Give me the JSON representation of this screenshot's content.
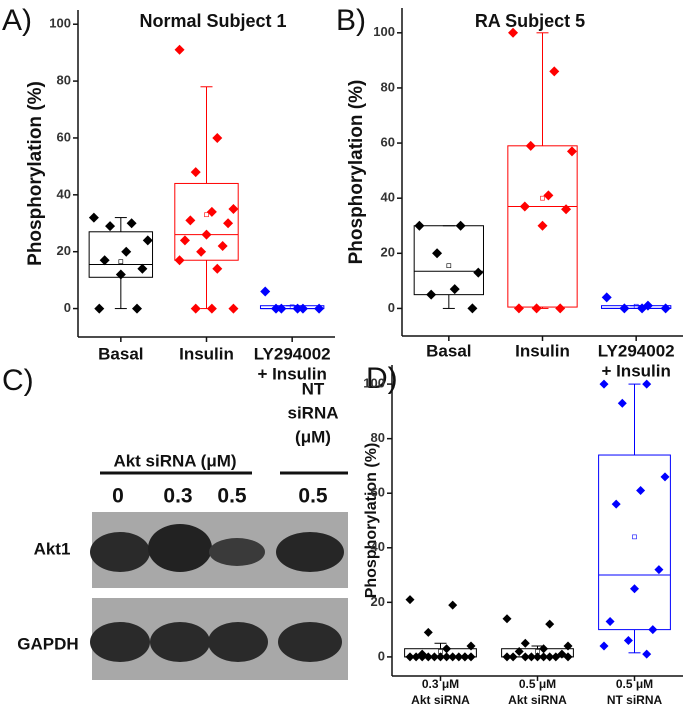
{
  "chart_data": [
    {
      "type": "box",
      "panel_label": "A)",
      "title": "Normal Subject 1",
      "y_label": "Phosphorylation (%)",
      "categories": [
        [
          "Basal"
        ],
        [
          "Insulin"
        ],
        [
          "LY294002",
          "+ Insulin"
        ]
      ],
      "colors": [
        "#000000",
        "#ff0000",
        "#0000ff"
      ],
      "points": [
        [
          32,
          30,
          29,
          24,
          20,
          17,
          14,
          12,
          0,
          0
        ],
        [
          91,
          60,
          48,
          35,
          34,
          31,
          30,
          26,
          24,
          22,
          20,
          17,
          14,
          0,
          0,
          0
        ],
        [
          6,
          0,
          0,
          0,
          0,
          0
        ]
      ],
      "boxes": [
        {
          "q1": 11,
          "median": 15.5,
          "q3": 27,
          "whisker_low": 0,
          "whisker_high": 32,
          "mean": 16.5
        },
        {
          "q1": 17,
          "median": 26,
          "q3": 44,
          "whisker_low": 0,
          "whisker_high": 78,
          "mean": 33
        },
        {
          "q1": 0,
          "median": 0,
          "q3": 1,
          "whisker_low": 0,
          "whisker_high": 1,
          "mean": 0.6
        }
      ],
      "ylim": [
        -10,
        105
      ],
      "yticks": [
        0,
        20,
        40,
        60,
        80,
        100
      ]
    },
    {
      "type": "box",
      "panel_label": "B)",
      "title": "RA Subject 5",
      "y_label": "Phosphorylation (%)",
      "categories": [
        [
          "Basal"
        ],
        [
          "Insulin"
        ],
        [
          "LY294002",
          "+ Insulin"
        ]
      ],
      "colors": [
        "#000000",
        "#ff0000",
        "#0000ff"
      ],
      "points": [
        [
          30,
          30,
          20,
          13,
          7,
          5,
          0
        ],
        [
          100,
          86,
          59,
          57,
          41,
          37,
          36,
          30,
          0,
          0,
          0
        ],
        [
          4,
          1,
          0,
          0,
          0
        ]
      ],
      "boxes": [
        {
          "q1": 5,
          "median": 13.5,
          "q3": 30,
          "whisker_low": 0,
          "whisker_high": 30,
          "mean": 15.5
        },
        {
          "q1": 0.5,
          "median": 37,
          "q3": 59,
          "whisker_low": 0,
          "whisker_high": 100,
          "mean": 40
        },
        {
          "q1": 0,
          "median": 0,
          "q3": 1,
          "whisker_low": 0,
          "whisker_high": 1,
          "mean": 0.8
        }
      ],
      "ylim": [
        -10,
        109
      ],
      "yticks": [
        0,
        20,
        40,
        60,
        80,
        100
      ]
    },
    {
      "type": "box",
      "panel_label": "D)",
      "y_label": "Phosphorylation (%)",
      "categories": [
        [
          "0.3 μM",
          "Akt siRNA"
        ],
        [
          "0.5 μM",
          "Akt siRNA"
        ],
        [
          "0.5 μM",
          "NT siRNA"
        ]
      ],
      "colors": [
        "#000000",
        "#000000",
        "#0000ff"
      ],
      "points": [
        [
          21,
          19,
          9,
          4,
          3,
          1,
          0,
          0,
          0,
          0,
          0,
          0,
          0,
          0,
          0,
          0,
          0,
          0
        ],
        [
          14,
          12,
          5,
          4,
          3,
          2,
          1,
          0,
          0,
          0,
          0,
          0,
          0,
          0,
          0,
          0
        ],
        [
          100,
          100,
          93,
          66,
          61,
          56,
          32,
          25,
          13,
          10,
          6,
          4,
          1
        ]
      ],
      "boxes": [
        {
          "q1": 0,
          "median": 0,
          "q3": 3,
          "whisker_low": 0,
          "whisker_high": 5,
          "mean": 2
        },
        {
          "q1": 0,
          "median": 0,
          "q3": 3,
          "whisker_low": 0,
          "whisker_high": 4,
          "mean": 2
        },
        {
          "q1": 10,
          "median": 30,
          "q3": 74,
          "whisker_low": 1.5,
          "whisker_high": 100,
          "mean": 44
        }
      ],
      "ylim": [
        -7,
        107
      ],
      "yticks": [
        0,
        20,
        40,
        60,
        80,
        100
      ]
    }
  ],
  "blot": {
    "panel_label": "C)",
    "group_label": "Akt siRNA (μM)",
    "control_label": [
      "NT",
      "siRNA",
      "(μM)"
    ],
    "lanes": [
      "0",
      "0.3",
      "0.5",
      "0.5"
    ],
    "rows": [
      "Akt1",
      "GAPDH"
    ]
  }
}
